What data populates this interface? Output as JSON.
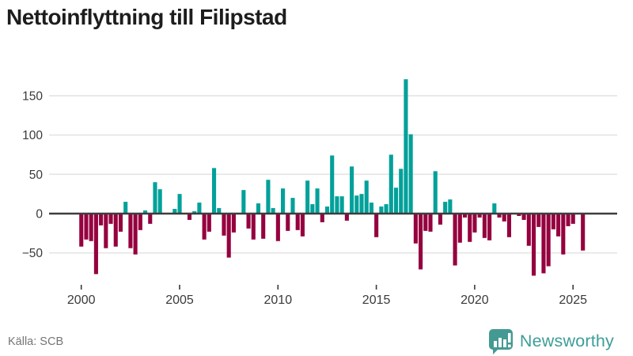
{
  "title": "Nettoinflyttning till Filipstad",
  "source": {
    "label": "Källa: SCB"
  },
  "branding": {
    "name": "Newsworthy",
    "logo_icon": "newsworthy-badge-icon"
  },
  "colors": {
    "positive": "#00a19a",
    "negative": "#95003f",
    "zero_line": "#3d3d3d",
    "grid_line": "#e4e4e4",
    "axis_text": "#3a3a3a",
    "title_text": "#1d1d1d",
    "source_text": "#757575",
    "brand_teal": "#3d9e98",
    "background": "#ffffff"
  },
  "chart_data": {
    "type": "bar",
    "title": "Nettoinflyttning till Filipstad",
    "frequency": "quarterly",
    "start_year": 2000,
    "start_quarter": 1,
    "values": [
      -42,
      -33,
      -35,
      -77,
      -15,
      -44,
      -13,
      -42,
      -23,
      15,
      -44,
      -52,
      -21,
      4,
      -13,
      40,
      31,
      1,
      0,
      6,
      25,
      0,
      -8,
      3,
      14,
      -33,
      -23,
      58,
      7,
      -28,
      -56,
      -24,
      0,
      30,
      -19,
      -33,
      13,
      -32,
      43,
      7,
      -35,
      32,
      -22,
      20,
      -21,
      -29,
      42,
      12,
      32,
      -11,
      9,
      74,
      22,
      22,
      -9,
      60,
      23,
      25,
      42,
      14,
      -30,
      9,
      12,
      75,
      33,
      57,
      171,
      101,
      -38,
      -71,
      -22,
      -23,
      54,
      -14,
      15,
      18,
      -66,
      -37,
      -5,
      -36,
      -24,
      -5,
      -31,
      -34,
      13,
      -5,
      -10,
      -30,
      -1,
      -3,
      -8,
      -41,
      -79,
      -17,
      -76,
      -67,
      -20,
      -29,
      -52,
      -16,
      -13,
      0,
      -47
    ],
    "x_tick_labels": [
      "2000",
      "2005",
      "2010",
      "2015",
      "2020",
      "2025"
    ],
    "x_tick_years": [
      2000,
      2005,
      2010,
      2015,
      2020,
      2025
    ],
    "y_ticks": [
      150,
      100,
      50,
      0,
      -50
    ],
    "y_tick_labels": [
      "150",
      "100",
      "50",
      "0",
      "−50"
    ],
    "ylim": [
      -90,
      180
    ],
    "grid": "horizontal",
    "legend": "none",
    "positive_color": "#00a19a",
    "negative_color": "#95003f"
  }
}
